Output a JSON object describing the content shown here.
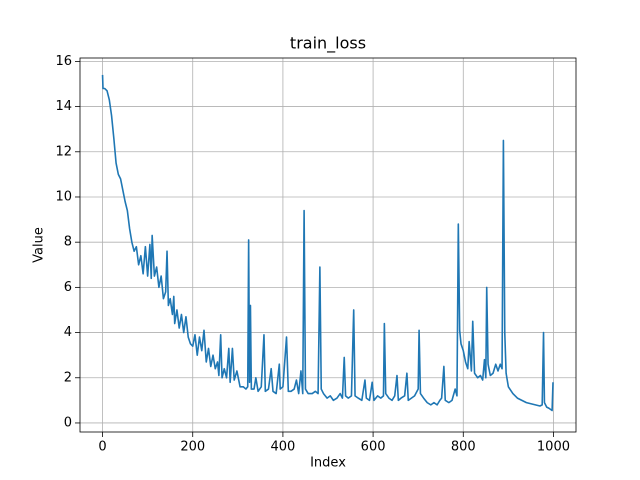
{
  "chart_data": {
    "type": "line",
    "title": "train_loss",
    "x_label": "Index",
    "y_label": "Value",
    "grid": true,
    "color": "#1f77b4",
    "xlim": [
      -50,
      1050
    ],
    "ylim": [
      -0.4,
      16.15
    ],
    "xticks": [
      0,
      200,
      400,
      600,
      800,
      1000
    ],
    "yticks": [
      0,
      2,
      4,
      6,
      8,
      10,
      12,
      14,
      16
    ],
    "x": [
      0,
      1,
      5,
      10,
      15,
      20,
      25,
      30,
      35,
      40,
      45,
      50,
      55,
      60,
      65,
      70,
      75,
      80,
      85,
      90,
      95,
      100,
      105,
      108,
      110,
      115,
      120,
      125,
      130,
      135,
      140,
      143,
      146,
      150,
      155,
      158,
      160,
      165,
      170,
      175,
      180,
      185,
      190,
      195,
      200,
      205,
      210,
      215,
      220,
      225,
      230,
      235,
      240,
      245,
      250,
      255,
      258,
      262,
      265,
      270,
      275,
      280,
      283,
      288,
      292,
      298,
      305,
      312,
      318,
      322,
      324,
      326,
      328,
      330,
      336,
      340,
      345,
      352,
      358,
      361,
      368,
      374,
      378,
      385,
      392,
      394,
      400,
      408,
      412,
      418,
      425,
      430,
      435,
      440,
      444,
      447,
      450,
      456,
      465,
      472,
      478,
      482,
      485,
      490,
      498,
      505,
      512,
      520,
      527,
      532,
      536,
      539,
      545,
      552,
      557,
      560,
      567,
      575,
      582,
      585,
      592,
      598,
      602,
      610,
      617,
      623,
      625,
      628,
      635,
      642,
      648,
      653,
      656,
      662,
      670,
      675,
      678,
      685,
      692,
      700,
      702,
      705,
      712,
      720,
      728,
      735,
      742,
      748,
      752,
      757,
      760,
      768,
      775,
      782,
      786,
      789,
      792,
      795,
      800,
      805,
      810,
      813,
      818,
      821,
      825,
      832,
      838,
      843,
      847,
      850,
      852,
      855,
      860,
      866,
      872,
      877,
      882,
      886,
      889,
      892,
      895,
      900,
      910,
      920,
      930,
      940,
      950,
      960,
      970,
      975,
      978,
      980,
      985,
      990,
      997,
      999
    ],
    "values": [
      15.4,
      14.8,
      14.8,
      14.7,
      14.3,
      13.6,
      12.6,
      11.5,
      11.0,
      10.8,
      10.3,
      9.8,
      9.4,
      8.6,
      8.0,
      7.6,
      7.8,
      7.0,
      7.4,
      6.6,
      7.8,
      6.5,
      7.9,
      6.4,
      8.3,
      6.5,
      6.9,
      6.0,
      6.5,
      5.5,
      5.8,
      7.6,
      5.2,
      5.5,
      4.8,
      5.6,
      4.4,
      5.0,
      4.2,
      4.8,
      4.0,
      4.7,
      3.8,
      3.5,
      3.4,
      3.9,
      3.0,
      3.8,
      3.2,
      4.1,
      2.7,
      3.3,
      2.5,
      3.0,
      2.4,
      2.7,
      2.1,
      3.9,
      2.0,
      2.4,
      2.0,
      3.3,
      1.8,
      3.3,
      1.9,
      2.3,
      1.6,
      1.6,
      1.5,
      1.6,
      8.1,
      1.8,
      5.2,
      1.5,
      1.5,
      2.0,
      1.4,
      1.6,
      3.9,
      1.4,
      1.5,
      2.4,
      1.4,
      1.3,
      2.6,
      1.5,
      1.6,
      3.8,
      1.4,
      1.4,
      1.5,
      1.9,
      1.3,
      2.3,
      1.3,
      9.4,
      1.5,
      1.3,
      1.3,
      1.4,
      1.3,
      6.9,
      1.5,
      1.3,
      1.1,
      1.2,
      1.0,
      1.1,
      1.3,
      1.1,
      2.9,
      1.2,
      1.1,
      1.2,
      5.0,
      1.2,
      1.1,
      1.0,
      1.9,
      1.1,
      1.0,
      1.8,
      1.0,
      1.2,
      1.1,
      1.2,
      4.4,
      1.3,
      1.1,
      1.0,
      1.2,
      2.1,
      1.0,
      1.1,
      1.2,
      2.2,
      1.0,
      1.1,
      1.2,
      1.5,
      4.1,
      1.3,
      1.1,
      0.9,
      0.8,
      0.9,
      0.8,
      1.0,
      1.1,
      2.5,
      1.0,
      0.9,
      1.0,
      1.5,
      1.2,
      8.8,
      4.1,
      3.5,
      3.2,
      2.7,
      2.4,
      3.6,
      2.3,
      4.5,
      2.2,
      2.0,
      2.1,
      1.9,
      2.8,
      2.0,
      6.0,
      2.6,
      2.1,
      2.2,
      2.6,
      2.3,
      2.6,
      2.4,
      12.5,
      4.0,
      2.2,
      1.6,
      1.3,
      1.1,
      1.0,
      0.9,
      0.85,
      0.8,
      0.75,
      0.8,
      4.0,
      0.9,
      0.7,
      0.65,
      0.55,
      1.8
    ]
  }
}
